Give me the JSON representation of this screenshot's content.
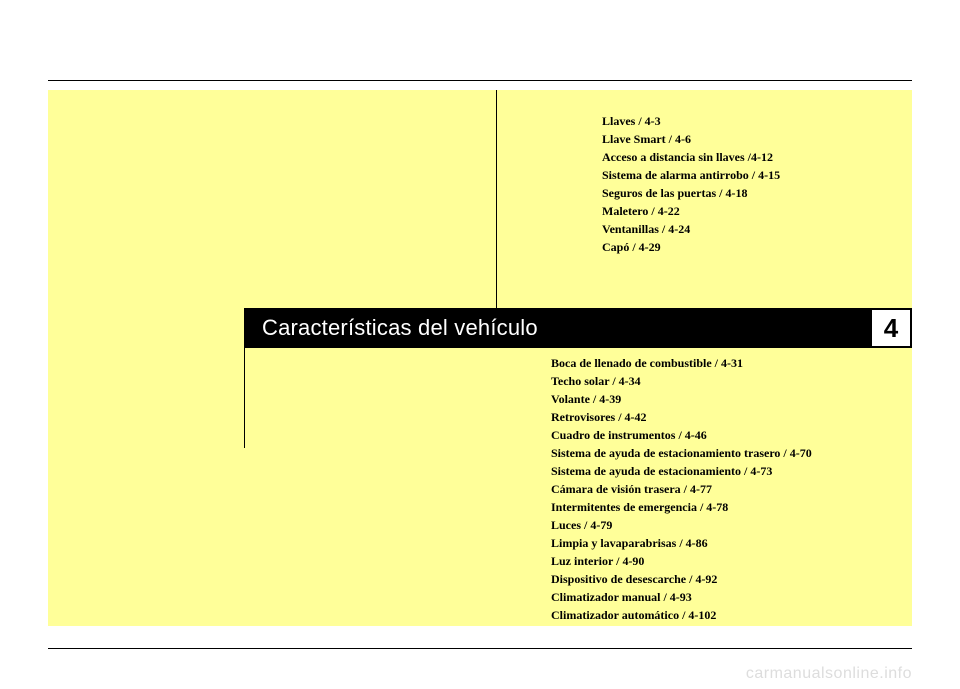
{
  "chapter": {
    "title": "Características del vehículo",
    "number": "4"
  },
  "toc_upper": [
    "Llaves / 4-3",
    "Llave Smart / 4-6",
    "Acceso a distancia sin llaves /4-12",
    "Sistema de alarma antirrobo / 4-15",
    "Seguros de las puertas / 4-18",
    "Maletero / 4-22",
    "Ventanillas / 4-24",
    "Capó / 4-29"
  ],
  "toc_lower": [
    "Boca de llenado de combustible / 4-31",
    "Techo solar / 4-34",
    "Volante / 4-39",
    "Retrovisores / 4-42",
    "Cuadro de instrumentos / 4-46",
    "Sistema de ayuda de estacionamiento trasero / 4-70",
    "Sistema de ayuda de estacionamiento / 4-73",
    "Cámara de visión trasera / 4-77",
    "Intermitentes de emergencia / 4-78",
    "Luces / 4-79",
    "Limpia y lavaparabrisas / 4-86",
    "Luz interior / 4-90",
    "Dispositivo de desescarche / 4-92",
    "Climatizador manual / 4-93",
    "Climatizador automático / 4-102"
  ],
  "watermark": "carmanualsonline.info",
  "colors": {
    "page_bg": "#ffffff",
    "box_bg": "#ffff99",
    "rule": "#000000",
    "bar_bg": "#000000",
    "bar_text": "#ffffff",
    "watermark": "#dddddd"
  }
}
